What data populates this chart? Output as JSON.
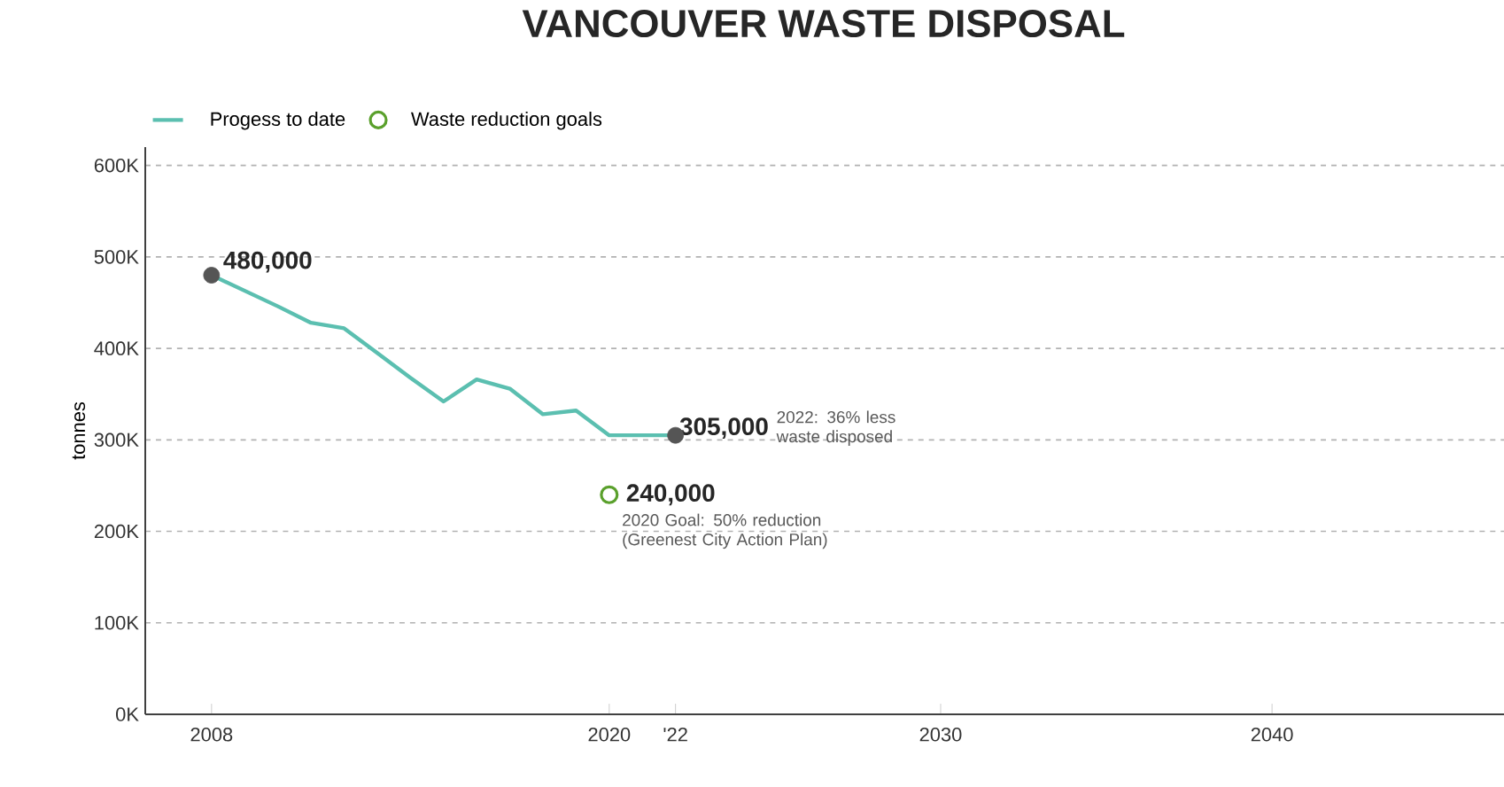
{
  "chart_data": {
    "type": "line",
    "title": "VANCOUVER WASTE DISPOSAL",
    "ylabel": "tonnes",
    "x": [
      2008,
      2009,
      2010,
      2011,
      2012,
      2013,
      2014,
      2015,
      2016,
      2017,
      2018,
      2019,
      2020,
      2021,
      2022
    ],
    "series": [
      {
        "name": "Progess to date",
        "color": "#5bbfb0",
        "values": [
          480000,
          463000,
          446000,
          428000,
          422000,
          395000,
          368000,
          342000,
          366000,
          356000,
          328000,
          332000,
          305000,
          305000,
          305000
        ]
      },
      {
        "type": "scatter",
        "color": "#555555",
        "x": [
          2008,
          2022
        ],
        "values": [
          480000,
          305000
        ]
      },
      {
        "name": "Waste reduction goals",
        "type": "scatter",
        "marker": "circle",
        "color": "#5aa02c",
        "x": [
          2020
        ],
        "values": [
          240000
        ]
      }
    ],
    "xlim": [
      2006,
      2047
    ],
    "xticks": [
      2008,
      2020,
      {
        "value": 2022,
        "label": "'22"
      },
      2030,
      2040
    ],
    "ylim": [
      0,
      620000
    ],
    "yticks": [
      {
        "value": 0,
        "label": "0K"
      },
      {
        "value": 100000,
        "label": "100K"
      },
      {
        "value": 200000,
        "label": "200K"
      },
      {
        "value": 300000,
        "label": "300K"
      },
      {
        "value": 400000,
        "label": "400K"
      },
      {
        "value": 500000,
        "label": "500K"
      },
      {
        "value": 600000,
        "label": "600K"
      }
    ],
    "grid": "y",
    "legend": "top left",
    "annotations": [
      {
        "text": "480,000",
        "x": 2008,
        "y": 480000
      },
      {
        "text": "305,000",
        "x": 2022,
        "y": 305000
      },
      "2022: 36% less waste disposed",
      {
        "text": "240,000",
        "x": 2020,
        "y": 240000
      },
      "2020 Goal: 50% reduction (Greenest City Action Plan)"
    ]
  }
}
